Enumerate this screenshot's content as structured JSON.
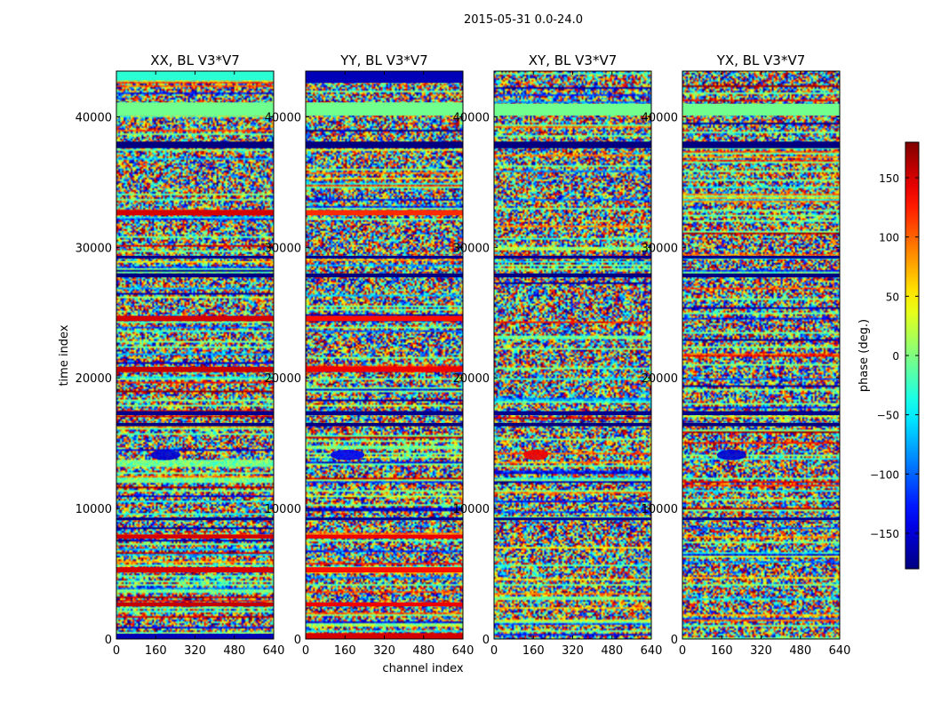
{
  "figure": {
    "suptitle": "2015-05-31 0.0-24.0"
  },
  "colors": {
    "colormap": "jet",
    "axes_frame": "#000000",
    "background": "#ffffff"
  },
  "chart_data": [
    {
      "type": "heatmap",
      "title": "XX, BL V3*V7",
      "xlabel": "",
      "ylabel": "time index",
      "xlim": [
        0,
        640
      ],
      "ylim": [
        0,
        43500
      ],
      "xticks": [
        0,
        160,
        320,
        480,
        640
      ],
      "yticks": [
        0,
        10000,
        20000,
        30000,
        40000
      ],
      "value_range": [
        -180,
        180
      ],
      "colormap": "jet",
      "bands": [
        {
          "y": [
            42800,
            43500
          ],
          "value": -30
        },
        {
          "y": [
            40100,
            41100
          ],
          "value": -5
        },
        {
          "y": [
            37600,
            38100
          ],
          "value": -180
        },
        {
          "y": [
            32450,
            32850
          ],
          "value": 150
        },
        {
          "y": [
            29150,
            29350
          ],
          "value": -175
        },
        {
          "y": [
            27700,
            28000
          ],
          "value": -180
        },
        {
          "y": [
            24350,
            24750
          ],
          "value": 150
        },
        {
          "y": [
            20450,
            20850
          ],
          "value": 155
        },
        {
          "y": [
            17150,
            17450
          ],
          "value": -175
        },
        {
          "y": [
            16300,
            16550
          ],
          "value": -180
        },
        {
          "y": [
            9100,
            9300
          ],
          "value": -175
        },
        {
          "y": [
            7700,
            8000
          ],
          "value": 150
        },
        {
          "y": [
            5100,
            5500
          ],
          "value": 150
        },
        {
          "y": [
            2500,
            2800
          ],
          "value": 155
        },
        {
          "y": [
            0,
            400
          ],
          "value": -160
        }
      ],
      "blobs": [
        {
          "x": [
            140,
            260
          ],
          "y": [
            13700,
            14500
          ],
          "value": -150
        }
      ]
    },
    {
      "type": "heatmap",
      "title": "YY, BL V3*V7",
      "xlabel": "channel index",
      "ylabel": "",
      "xlim": [
        0,
        640
      ],
      "ylim": [
        0,
        43500
      ],
      "xticks": [
        0,
        160,
        320,
        480,
        640
      ],
      "yticks": [
        0,
        10000,
        20000,
        30000,
        40000
      ],
      "value_range": [
        -180,
        180
      ],
      "colormap": "jet",
      "bands": [
        {
          "y": [
            42600,
            43500
          ],
          "value": -160
        },
        {
          "y": [
            40100,
            41100
          ],
          "value": -5
        },
        {
          "y": [
            37600,
            38100
          ],
          "value": -180
        },
        {
          "y": [
            32450,
            32850
          ],
          "value": 120
        },
        {
          "y": [
            29150,
            29350
          ],
          "value": -175
        },
        {
          "y": [
            27700,
            28000
          ],
          "value": -180
        },
        {
          "y": [
            24350,
            24750
          ],
          "value": 130
        },
        {
          "y": [
            20450,
            20850
          ],
          "value": 140
        },
        {
          "y": [
            17150,
            17450
          ],
          "value": -175
        },
        {
          "y": [
            16300,
            16550
          ],
          "value": -180
        },
        {
          "y": [
            9100,
            9300
          ],
          "value": -175
        },
        {
          "y": [
            7700,
            8000
          ],
          "value": 140
        },
        {
          "y": [
            5100,
            5500
          ],
          "value": 130
        },
        {
          "y": [
            2500,
            2800
          ],
          "value": 140
        },
        {
          "y": [
            0,
            450
          ],
          "value": 150
        }
      ],
      "blobs": [
        {
          "x": [
            100,
            240
          ],
          "y": [
            13700,
            14500
          ],
          "value": -140
        }
      ]
    },
    {
      "type": "heatmap",
      "title": "XY, BL V3*V7",
      "xlabel": "",
      "ylabel": "",
      "xlim": [
        0,
        640
      ],
      "ylim": [
        0,
        43500
      ],
      "xticks": [
        0,
        160,
        320,
        480,
        640
      ],
      "yticks": [
        0,
        10000,
        20000,
        30000,
        40000
      ],
      "value_range": [
        -180,
        180
      ],
      "colormap": "jet",
      "bands": [
        {
          "y": [
            40100,
            41000
          ],
          "value": -5
        },
        {
          "y": [
            37600,
            38100
          ],
          "value": -180
        },
        {
          "y": [
            29150,
            29350
          ],
          "value": -175
        },
        {
          "y": [
            27700,
            28000
          ],
          "value": -180
        },
        {
          "y": [
            17150,
            17450
          ],
          "value": -175
        },
        {
          "y": [
            16300,
            16550
          ],
          "value": -180
        },
        {
          "y": [
            9100,
            9300
          ],
          "value": -175
        }
      ],
      "blobs": [
        {
          "x": [
            120,
            220
          ],
          "y": [
            13700,
            14500
          ],
          "value": 140
        }
      ]
    },
    {
      "type": "heatmap",
      "title": "YX, BL V3*V7",
      "xlabel": "",
      "ylabel": "",
      "xlim": [
        0,
        640
      ],
      "ylim": [
        0,
        43500
      ],
      "xticks": [
        0,
        160,
        320,
        480,
        640
      ],
      "yticks": [
        0,
        10000,
        20000,
        30000,
        40000
      ],
      "value_range": [
        -180,
        180
      ],
      "colormap": "jet",
      "bands": [
        {
          "y": [
            40100,
            41000
          ],
          "value": -5
        },
        {
          "y": [
            37600,
            38100
          ],
          "value": -180
        },
        {
          "y": [
            29150,
            29350
          ],
          "value": -175
        },
        {
          "y": [
            27700,
            28000
          ],
          "value": -180
        },
        {
          "y": [
            17150,
            17450
          ],
          "value": -175
        },
        {
          "y": [
            16300,
            16550
          ],
          "value": -180
        },
        {
          "y": [
            9100,
            9300
          ],
          "value": -175
        }
      ],
      "blobs": [
        {
          "x": [
            140,
            260
          ],
          "y": [
            13700,
            14500
          ],
          "value": -150
        }
      ]
    }
  ],
  "colorbar": {
    "label": "phase (deg.)",
    "range": [
      -180,
      180
    ],
    "ticks": [
      -150,
      -100,
      -50,
      0,
      50,
      100,
      150
    ],
    "tick_labels": [
      "−150",
      "−100",
      "−50",
      "0",
      "50",
      "100",
      "150"
    ],
    "colormap": "jet"
  }
}
